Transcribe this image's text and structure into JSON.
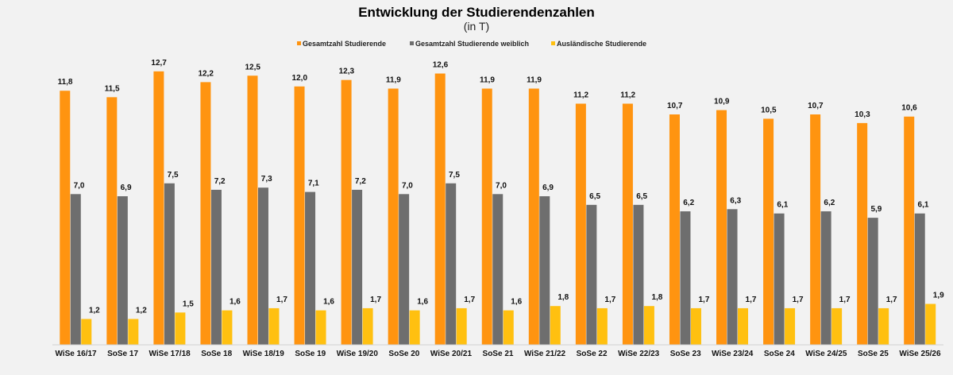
{
  "chart_data": {
    "type": "bar",
    "title": "Entwicklung der Studierendenzahlen",
    "subtitle": "(in T)",
    "xlabel": "",
    "ylabel": "",
    "ylim": [
      0,
      14
    ],
    "grid": false,
    "legend_position": "top-center",
    "categories": [
      "WiSe 16/17",
      "SoSe 17",
      "WiSe 17/18",
      "SoSe 18",
      "WiSe 18/19",
      "SoSe 19",
      "WiSe 19/20",
      "SoSe 20",
      "WiSe 20/21",
      "SoSe 21",
      "WiSe 21/22",
      "SoSe 22",
      "WiSe 22/23",
      "SoSe 23",
      "WiSe 23/24",
      "SoSe 24",
      "WiSe 24/25",
      "SoSe 25",
      "WiSe 25/26"
    ],
    "series": [
      {
        "name": "Gesamtzahl Studierende",
        "color": "#ff9410",
        "values": [
          11.8,
          11.5,
          12.7,
          12.2,
          12.5,
          12.0,
          12.3,
          11.9,
          12.6,
          11.9,
          11.9,
          11.2,
          11.2,
          10.7,
          10.9,
          10.5,
          10.7,
          10.3,
          10.6
        ],
        "labels": [
          "11,8",
          "11,5",
          "12,7",
          "12,2",
          "12,5",
          "12,0",
          "12,3",
          "11,9",
          "12,6",
          "11,9",
          "11,9",
          "11,2",
          "11,2",
          "10,7",
          "10,9",
          "10,5",
          "10,7",
          "10,3",
          "10,6"
        ]
      },
      {
        "name": "Gesamtzahl Studierende weiblich",
        "color": "#6e6e6e",
        "values": [
          7.0,
          6.9,
          7.5,
          7.2,
          7.3,
          7.1,
          7.2,
          7.0,
          7.5,
          7.0,
          6.9,
          6.5,
          6.5,
          6.2,
          6.3,
          6.1,
          6.2,
          5.9,
          6.1
        ],
        "labels": [
          "7,0",
          "6,9",
          "7,5",
          "7,2",
          "7,3",
          "7,1",
          "7,2",
          "7,0",
          "7,5",
          "7,0",
          "6,9",
          "6,5",
          "6,5",
          "6,2",
          "6,3",
          "6,1",
          "6,2",
          "5,9",
          "6,1"
        ]
      },
      {
        "name": "Ausländische Studierende",
        "color": "#ffc010",
        "values": [
          1.2,
          1.2,
          1.5,
          1.6,
          1.7,
          1.6,
          1.7,
          1.6,
          1.7,
          1.6,
          1.8,
          1.7,
          1.8,
          1.7,
          1.7,
          1.7,
          1.7,
          1.7,
          1.9
        ],
        "labels": [
          "1,2",
          "1,2",
          "1,5",
          "1,6",
          "1,7",
          "1,6",
          "1,7",
          "1,6",
          "1,7",
          "1,6",
          "1,8",
          "1,7",
          "1,8",
          "1,7",
          "1,7",
          "1,7",
          "1,7",
          "1,7",
          "1,9"
        ]
      }
    ]
  }
}
